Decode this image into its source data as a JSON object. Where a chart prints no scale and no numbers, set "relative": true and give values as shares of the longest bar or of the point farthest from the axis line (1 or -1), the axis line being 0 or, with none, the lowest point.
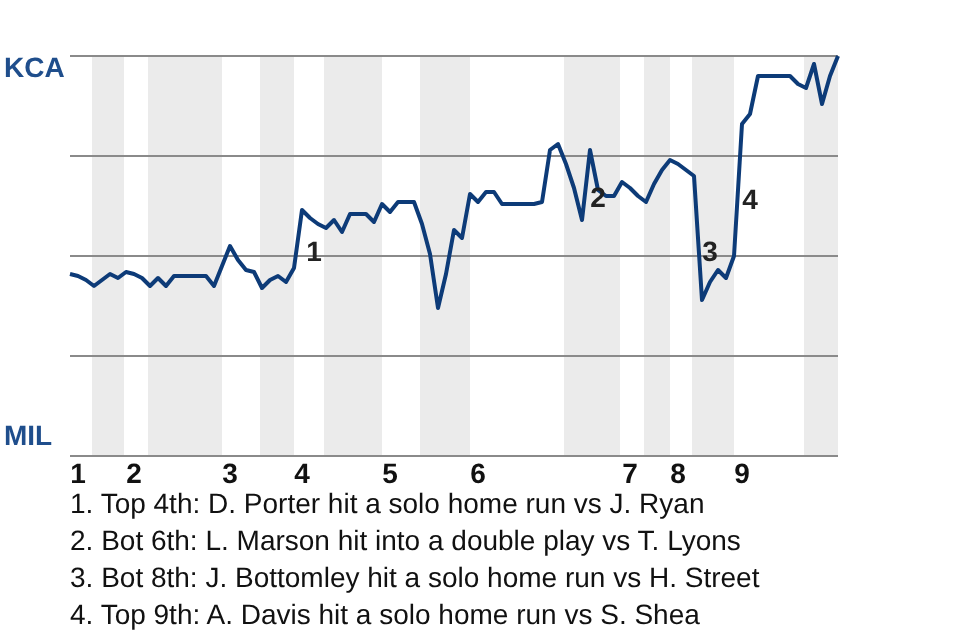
{
  "chart_data": {
    "type": "line",
    "relative": true,
    "categories": [
      null,
      "1",
      null,
      null,
      null,
      null,
      null,
      null,
      "2",
      null,
      null,
      null,
      null,
      null,
      null,
      null,
      null,
      null,
      null,
      null,
      "3",
      null,
      null,
      null,
      null,
      null,
      null,
      null,
      null,
      "4",
      null,
      null,
      null,
      null,
      null,
      null,
      null,
      null,
      null,
      null,
      "5",
      null,
      null,
      null,
      null,
      null,
      null,
      null,
      null,
      null,
      null,
      "6",
      null,
      null,
      null,
      null,
      null,
      null,
      null,
      null,
      null,
      null,
      null,
      null,
      null,
      null,
      null,
      null,
      null,
      null,
      "7",
      null,
      null,
      null,
      null,
      null,
      "8",
      null,
      null,
      null,
      null,
      null,
      null,
      null,
      "9",
      null,
      null,
      null,
      null,
      null,
      null,
      null,
      null,
      null,
      null,
      null,
      null
    ],
    "series": [
      {
        "color": "#0d3b78",
        "values": [
          0.455,
          0.45,
          0.44,
          0.425,
          0.44,
          0.455,
          0.445,
          0.46,
          0.455,
          0.445,
          0.425,
          0.445,
          0.425,
          0.45,
          0.45,
          0.45,
          0.45,
          0.45,
          0.425,
          0.475,
          0.525,
          0.49,
          0.465,
          0.46,
          0.42,
          0.44,
          0.45,
          0.435,
          0.47,
          0.615,
          0.595,
          0.58,
          0.57,
          0.59,
          0.56,
          0.605,
          0.605,
          0.605,
          0.585,
          0.63,
          0.61,
          0.635,
          0.635,
          0.635,
          0.58,
          0.505,
          0.37,
          0.455,
          0.565,
          0.545,
          0.655,
          0.635,
          0.66,
          0.66,
          0.63,
          0.63,
          0.63,
          0.63,
          0.63,
          0.635,
          0.765,
          0.78,
          0.73,
          0.67,
          0.59,
          0.765,
          0.665,
          0.65,
          0.65,
          0.685,
          0.67,
          0.65,
          0.635,
          0.68,
          0.715,
          0.74,
          0.73,
          0.715,
          0.7,
          0.39,
          0.435,
          0.465,
          0.445,
          0.5,
          0.83,
          0.855,
          0.95,
          0.95,
          0.95,
          0.95,
          0.95,
          0.93,
          0.92,
          0.98,
          0.88,
          0.95,
          1
        ]
      }
    ],
    "line_style": "solid",
    "ref_lines": [
      {
        "axis": "y",
        "value": 0.25,
        "color": "#8a8a8a"
      },
      {
        "axis": "y",
        "value": 0.5,
        "color": "#8a8a8a"
      },
      {
        "axis": "y",
        "value": 0.75,
        "color": "#8a8a8a"
      },
      {
        "axis": "y",
        "value": 1,
        "color": "#8a8a8a"
      }
    ],
    "annotations": [
      "KCA",
      "MIL",
      "1",
      "2",
      "3",
      "4",
      "1. Top 4th: D. Porter hit a solo home run vs J. Ryan",
      "2. Bot 6th: L. Marson hit into a double play vs T. Lyons",
      "3. Bot 8th: J. Bottomley hit a solo home run vs H. Street",
      "4. Top 9th: A. Davis hit a solo home run vs S. Shea"
    ]
  }
}
